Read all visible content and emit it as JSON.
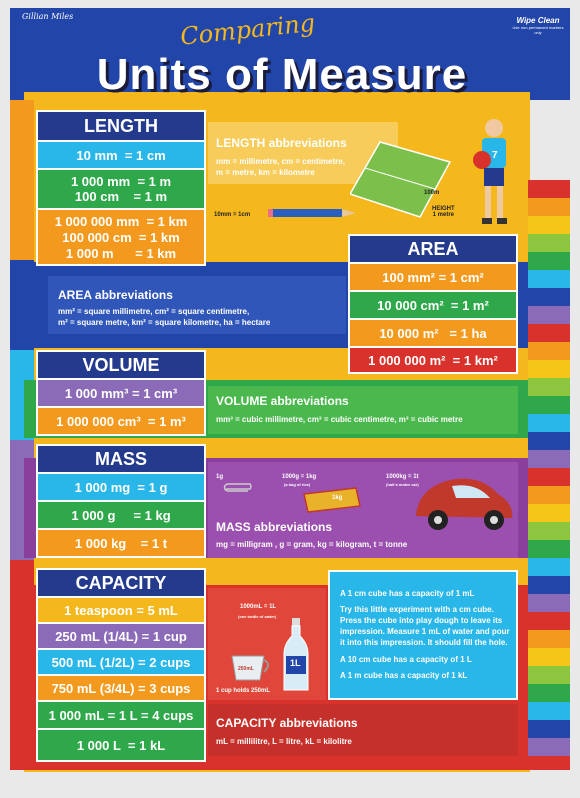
{
  "brand": "Gillian Miles",
  "wipe_clean": {
    "label": "Wipe Clean",
    "sub": "Use non-permanent markers only"
  },
  "title": {
    "script": "Comparing",
    "main": "Units of Measure"
  },
  "length": {
    "header": "LENGTH",
    "rows": [
      "10 mm  = 1 cm",
      "1 000 mm  = 1 m\n100 cm    = 1 m",
      "1 000 000 mm  = 1 km\n100 000 cm  = 1 km\n1 000 m      = 1 km"
    ],
    "abbr_title": "LENGTH abbreviations",
    "abbr_text": "mm = millimetre, cm = centimetre,\nm = metre, km = kilometre",
    "img_100m": "100m",
    "img_height": "HEIGHT\n1 metre",
    "img_pencil": "10mm = 1cm"
  },
  "area": {
    "header": "AREA",
    "rows": [
      "100 mm² = 1 cm²",
      "10 000 cm²  = 1 m²",
      "10 000 m²   = 1 ha",
      "1 000 000 m²  = 1 km²"
    ],
    "abbr_title": "AREA abbreviations",
    "abbr_text": "mm² = square millimetre, cm² = square centimetre,\nm² = square metre, km² = square kilometre, ha = hectare"
  },
  "volume": {
    "header": "VOLUME",
    "rows": [
      "1 000 mm³ = 1 cm³",
      "1 000 000 cm³  = 1 m³"
    ],
    "abbr_title": "VOLUME abbreviations",
    "abbr_text": "mm³ = cubic millimetre, cm³ = cubic centimetre, m³ = cubic metre"
  },
  "mass": {
    "header": "MASS",
    "rows": [
      "1 000 mg  = 1 g",
      "1 000 g     = 1 kg",
      "1 000 kg    = 1 t"
    ],
    "abbr_title": "MASS abbreviations",
    "abbr_text": "mg = milligram , g = gram, kg = kilogram, t = tonne",
    "img_1g": "1g",
    "img_1kg": "1000g = 1kg",
    "img_1kg_sub": "(a bag of rice)",
    "img_1t": "1000kg = 1t",
    "img_1t_sub": "(half a motor car)",
    "img_rice": "1kg"
  },
  "capacity": {
    "header": "CAPACITY",
    "rows": [
      "1 teaspoon = 5 mL",
      "250 mL (1/4L) = 1 cup",
      "500 mL (1/2L) = 2 cups",
      "750 mL (3/4L) = 3 cups",
      "1 000 mL = 1 L = 4 cups",
      "1 000 L  = 1 kL"
    ],
    "abbr_title": "CAPACITY abbreviations",
    "abbr_text": "mL = millilitre,  L = litre, kL = kilolitre",
    "img_bottle": "1000mL = 1L",
    "img_bottle_sub": "(one bottle of water)",
    "img_bottle_label": "1L",
    "img_cup": "1 cup holds 250mL",
    "img_cup_label": "250mL",
    "info": [
      "A 1 cm cube has a capacity of 1 mL",
      "Try this little experiment with a cm cube. Press the cube into play dough to leave its impression.  Measure 1 mL of water and pour it into this impression.  It should fill the hole.",
      "A 10 cm cube has a capacity of 1 L",
      "A 1 m cube has a capacity of 1 kL"
    ]
  },
  "colors": {
    "navy": "#243a8c",
    "cyan": "#29b6e8",
    "green": "#2ea84a",
    "orange": "#f39a1e",
    "purple": "#8b6bb8",
    "red": "#d9312b",
    "yellow": "#f5c518",
    "lime": "#8cc63f",
    "blue": "#1f5fb5"
  }
}
